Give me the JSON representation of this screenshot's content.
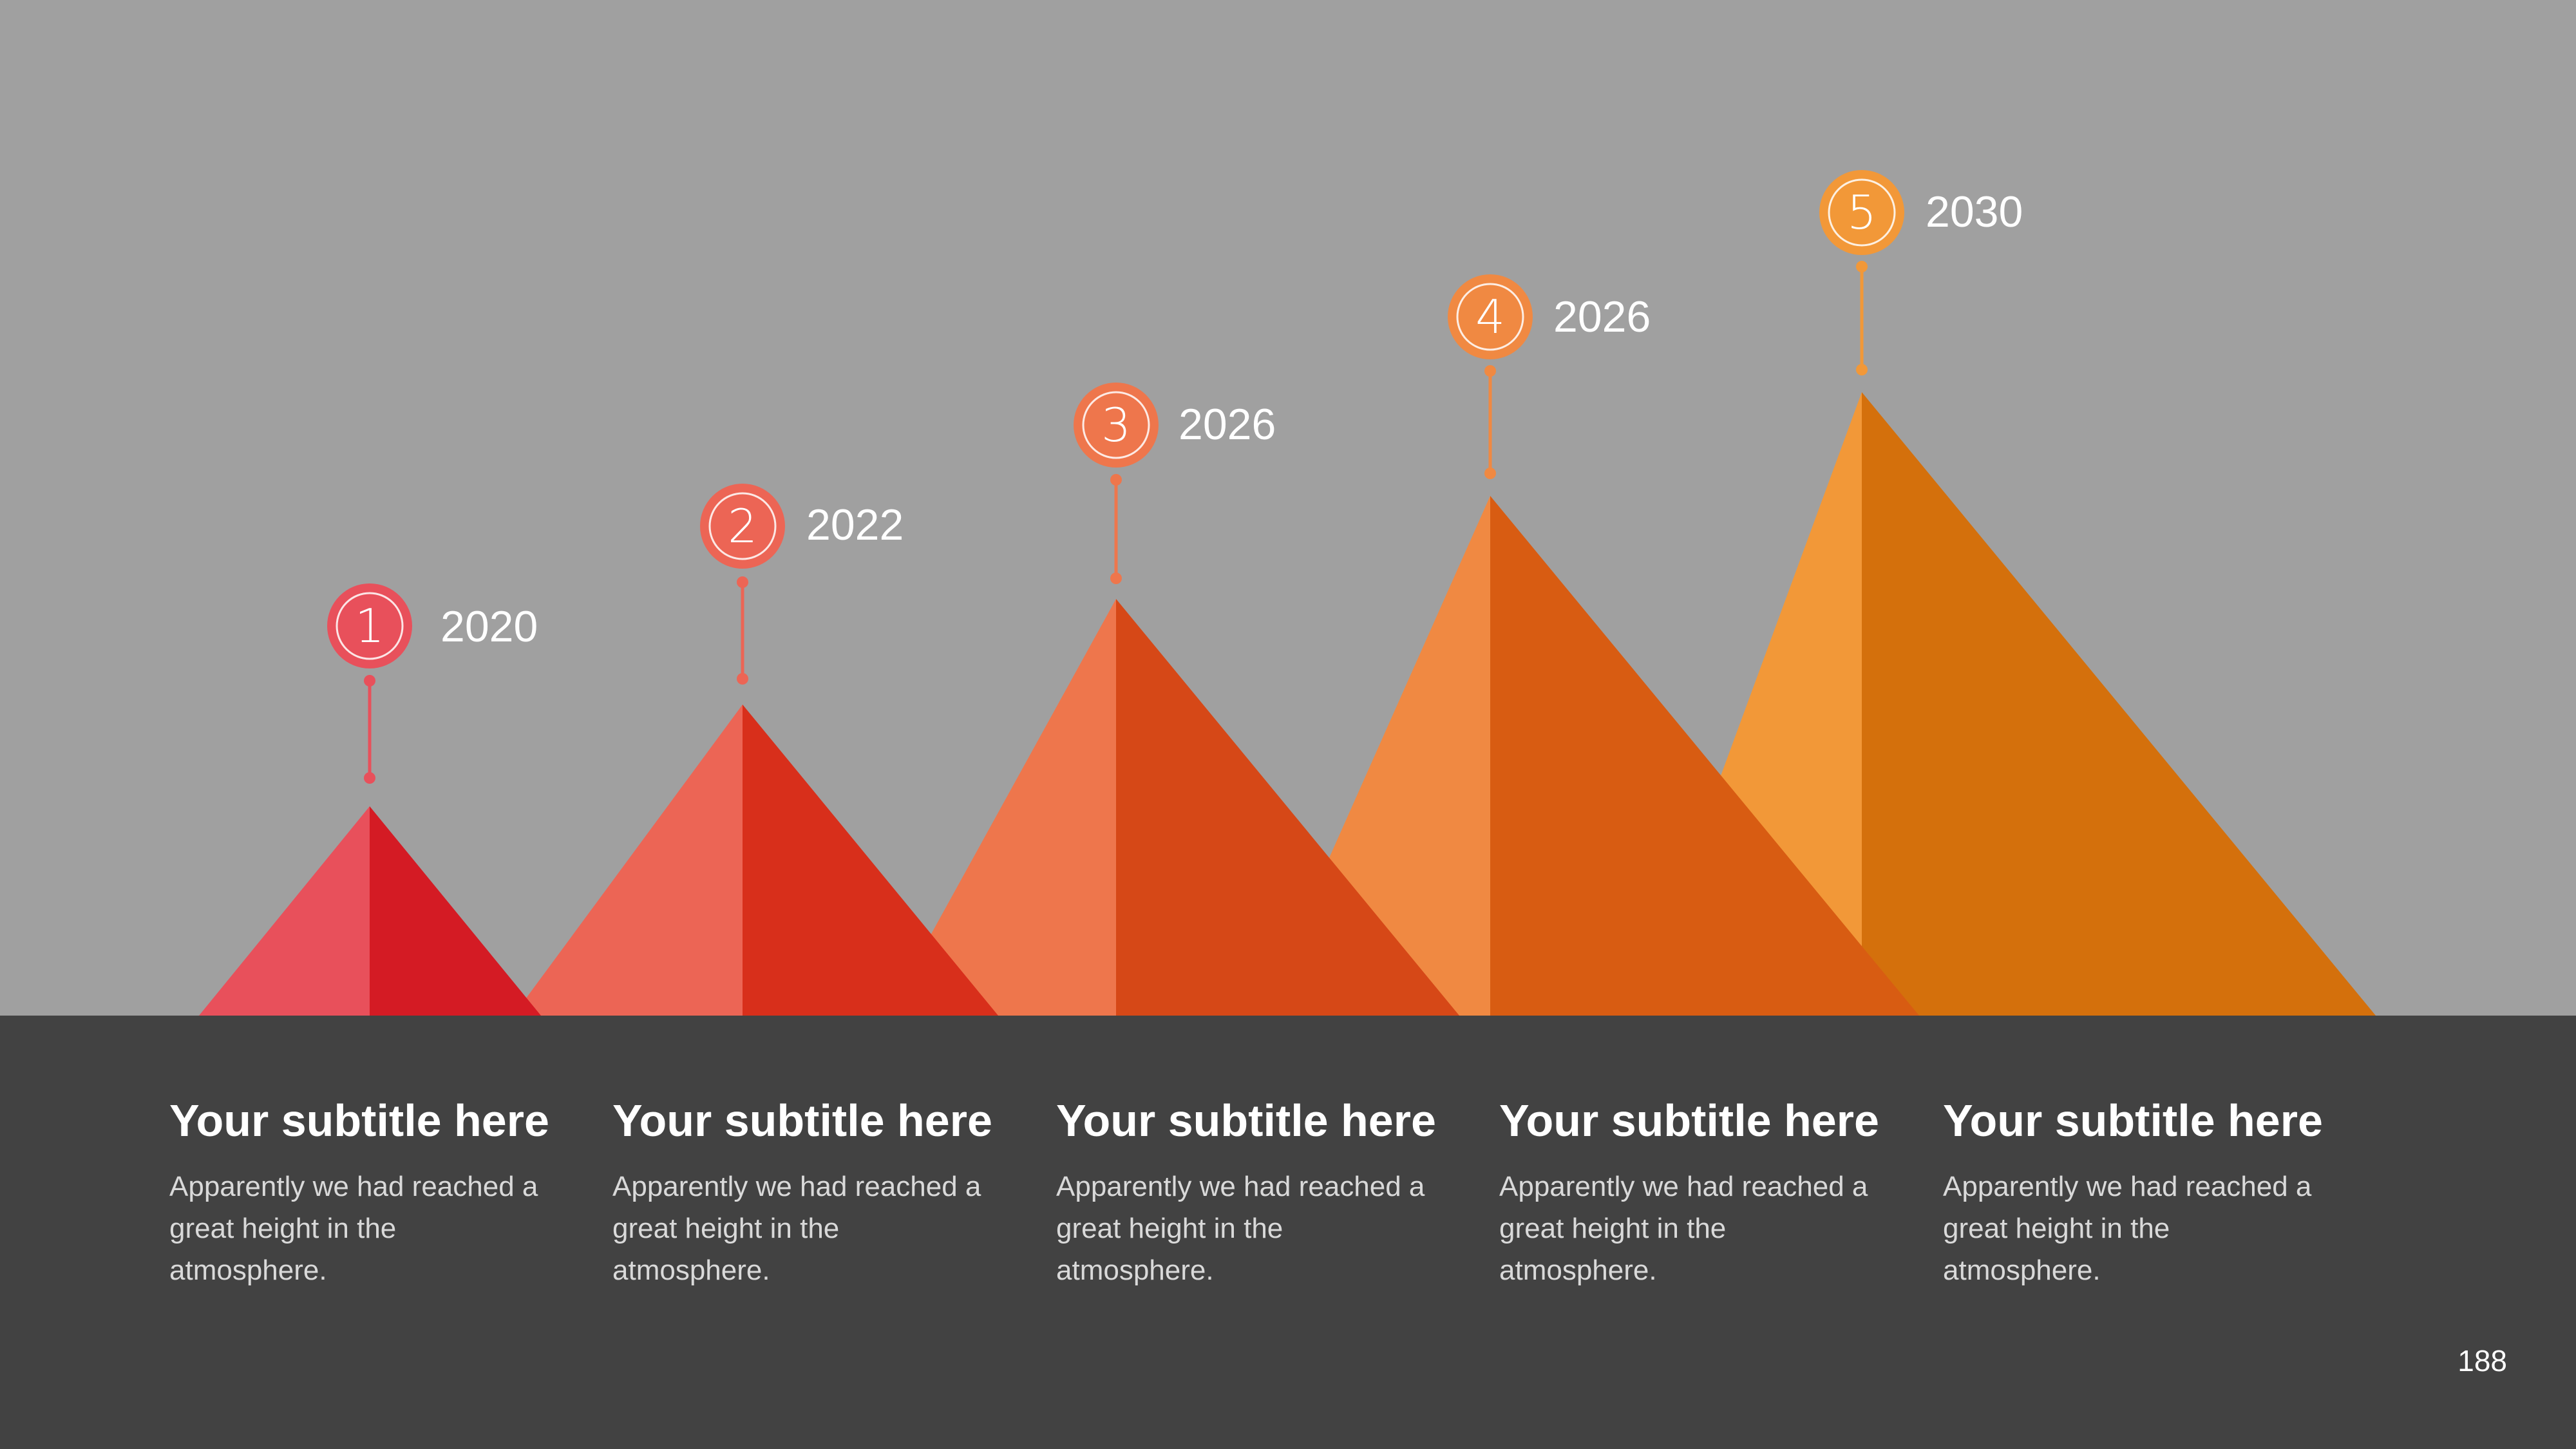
{
  "milestones": [
    {
      "number": "1",
      "year": "2020",
      "subtitle": "Your subtitle here",
      "description": "Apparently we had reached a great height in the atmosphere.",
      "colors": {
        "left": "#e8505b",
        "right": "#d41b24",
        "marker": "#e8505b"
      }
    },
    {
      "number": "2",
      "year": "2022",
      "subtitle": "Your subtitle here",
      "description": "Apparently we had reached a great height in the atmosphere.",
      "colors": {
        "left": "#ec6555",
        "right": "#d82f1b",
        "marker": "#ec6555"
      }
    },
    {
      "number": "3",
      "year": "2026",
      "subtitle": "Your subtitle here",
      "description": "Apparently we had reached a great height in the atmosphere.",
      "colors": {
        "left": "#ee764c",
        "right": "#d64817",
        "marker": "#ee764c"
      }
    },
    {
      "number": "4",
      "year": "2026",
      "subtitle": "Your subtitle here",
      "description": "Apparently we had reached a great height in the atmosphere.",
      "colors": {
        "left": "#f08942",
        "right": "#d85c12",
        "marker": "#f08942"
      }
    },
    {
      "number": "5",
      "year": "2030",
      "subtitle": "Your subtitle here",
      "description": "Apparently we had reached a great height in the atmosphere.",
      "colors": {
        "left": "#f29838",
        "right": "#d4700c",
        "marker": "#f29838"
      }
    }
  ],
  "page_number": "188",
  "colors": {
    "background": "#a0a0a0",
    "panel": "#424242"
  }
}
